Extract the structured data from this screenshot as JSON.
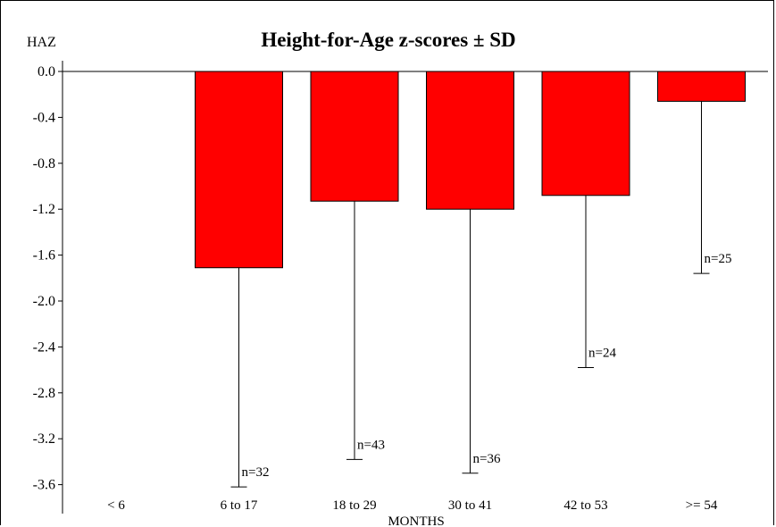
{
  "chart_data": {
    "type": "bar",
    "title": "Height-for-Age z-scores ± SD",
    "ylabel": "HAZ",
    "xlabel": "MONTHS",
    "categories": [
      "< 6",
      "6 to 17",
      "18 to 29",
      "30 to 41",
      "42 to 53",
      ">= 54"
    ],
    "values": [
      null,
      -1.71,
      -1.13,
      -1.2,
      -1.08,
      -0.26
    ],
    "sd": [
      null,
      1.91,
      2.25,
      2.3,
      1.5,
      1.5
    ],
    "n_labels": [
      "",
      "n=32",
      "n=43",
      "n=36",
      "n=24",
      "n=25"
    ],
    "ylim": [
      -3.6,
      0.0
    ],
    "yticks": [
      0.0,
      -0.4,
      -0.8,
      -1.2,
      -1.6,
      -2.0,
      -2.4,
      -2.8,
      -3.2,
      -3.6
    ],
    "ytick_labels": [
      "0.0",
      "-0.4",
      "-0.8",
      "-1.2",
      "-1.6",
      "-2.0",
      "-2.4",
      "-2.8",
      "-3.2",
      "-3.6"
    ],
    "bar_color": "#ff0000",
    "grid": false,
    "legend": "none"
  }
}
